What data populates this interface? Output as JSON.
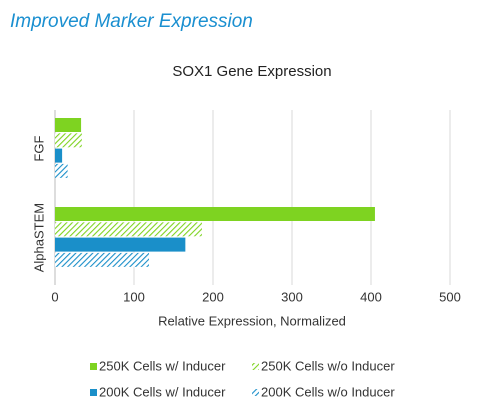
{
  "heading": "Improved Marker Expression",
  "chart_data": {
    "type": "hbar",
    "title": "SOX1 Gene Expression",
    "x_label": "Relative Expression, Normalized",
    "categories": [
      "FGF",
      "AlphaSTEM"
    ],
    "series": [
      {
        "name": "250K Cells w/ Inducer",
        "color": "#7ed321",
        "hatched": false,
        "values": [
          33,
          405
        ]
      },
      {
        "name": "250K Cells w/o Inducer",
        "color": "#7ed321",
        "hatched": true,
        "values": [
          34,
          186
        ]
      },
      {
        "name": "200K Cells w/ Inducer",
        "color": "#1a8fc9",
        "hatched": false,
        "values": [
          9,
          165
        ]
      },
      {
        "name": "200K Cells w/o Inducer",
        "color": "#1a8fc9",
        "hatched": true,
        "values": [
          16,
          119
        ]
      }
    ],
    "xlim": [
      0,
      500
    ],
    "xticks": [
      0,
      100,
      200,
      300,
      400,
      500
    ],
    "grid": true
  }
}
